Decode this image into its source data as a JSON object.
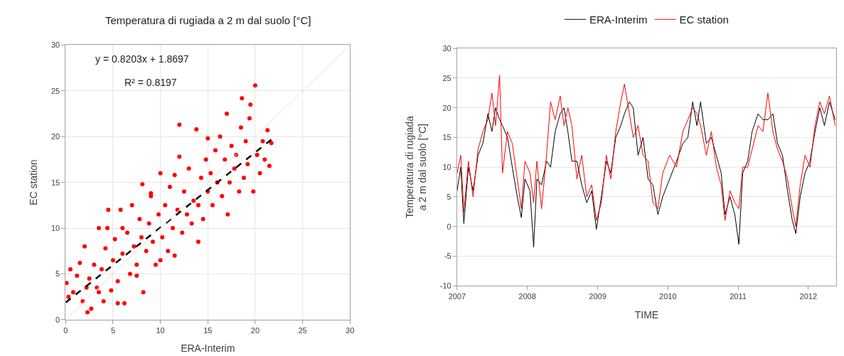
{
  "chart_data": [
    {
      "type": "scatter",
      "title": "Temperatura di rugiada a 2 m dal suolo [°C]",
      "xlabel": "ERA-Interim",
      "ylabel": "EC station",
      "xlim": [
        0,
        30
      ],
      "ylim": [
        0,
        30
      ],
      "xticks": [
        0,
        5,
        10,
        15,
        20,
        25,
        30
      ],
      "yticks": [
        0,
        5,
        10,
        15,
        20,
        25,
        30
      ],
      "grid": true,
      "annotations": [
        "y = 0.8203x + 1.8697",
        "R² = 0.8197"
      ],
      "series": [
        {
          "color": "#ff0000",
          "marker": "circle",
          "x": [
            0.1,
            0.3,
            0.5,
            0.8,
            1.2,
            1.5,
            1.8,
            2.0,
            2.3,
            2.5,
            2.7,
            3.0,
            3.3,
            3.5,
            3.8,
            4.0,
            4.2,
            4.5,
            4.8,
            5.0,
            5.2,
            5.5,
            5.8,
            6.0,
            6.2,
            6.5,
            6.8,
            7.0,
            7.2,
            7.5,
            7.8,
            8.0,
            8.2,
            8.5,
            8.8,
            9.0,
            9.2,
            9.5,
            9.8,
            10.0,
            10.2,
            10.5,
            10.8,
            11.0,
            11.3,
            11.5,
            11.8,
            12.0,
            12.3,
            12.5,
            12.8,
            13.0,
            13.3,
            13.5,
            13.8,
            14.0,
            14.3,
            14.5,
            14.8,
            15.0,
            15.3,
            15.5,
            15.8,
            16.0,
            16.3,
            16.5,
            16.8,
            17.0,
            17.3,
            17.5,
            17.8,
            18.0,
            18.3,
            18.5,
            18.8,
            19.0,
            19.2,
            19.5,
            19.8,
            20.0,
            20.2,
            20.5,
            20.8,
            21.0,
            21.3,
            21.5,
            21.7,
            6.0,
            8.1,
            12.0,
            3.5,
            2.2,
            4.4,
            9.0,
            11.5,
            14.0,
            17.1,
            18.6,
            19.4,
            15.0,
            10.0,
            7.5,
            5.5
          ],
          "values": [
            4.0,
            2.5,
            5.5,
            3.0,
            4.8,
            6.2,
            2.0,
            8.0,
            0.8,
            4.5,
            1.2,
            6.0,
            3.5,
            10.0,
            5.5,
            2.0,
            7.8,
            12.0,
            3.2,
            6.5,
            8.8,
            4.2,
            12.0,
            7.2,
            1.8,
            9.5,
            5.0,
            12.5,
            8.0,
            6.0,
            11.0,
            9.0,
            3.0,
            7.5,
            10.5,
            13.5,
            8.5,
            6.0,
            11.5,
            16.0,
            9.0,
            12.5,
            7.5,
            14.5,
            10.0,
            15.8,
            12.0,
            21.3,
            9.5,
            14.0,
            11.5,
            16.5,
            10.5,
            13.0,
            20.8,
            12.5,
            15.5,
            11.0,
            17.5,
            14.0,
            16.0,
            12.5,
            18.5,
            15.0,
            20.0,
            13.5,
            17.5,
            22.5,
            15.0,
            19.0,
            16.5,
            18.0,
            14.0,
            21.0,
            15.5,
            19.5,
            17.0,
            23.5,
            14.0,
            25.6,
            18.0,
            16.0,
            19.5,
            17.5,
            20.7,
            16.8,
            19.3,
            10.0,
            14.8,
            17.8,
            3.0,
            3.5,
            10.0,
            13.8,
            7.0,
            8.5,
            11.5,
            24.2,
            22.0,
            19.8,
            6.5,
            4.8,
            1.8
          ]
        },
        {
          "type": "line",
          "color": "#000000",
          "line_style": "dashed",
          "x": [
            0,
            21.7
          ],
          "values": [
            1.87,
            19.67
          ]
        },
        {
          "type": "line",
          "color": "#e0e0e0",
          "x": [
            0,
            30
          ],
          "values": [
            0,
            30
          ]
        }
      ]
    },
    {
      "type": "line",
      "xlabel": "TIME",
      "ylabel": "Temperatura di rugiada\na 2 m dal suolo [°C]",
      "xlim": [
        "2007-01-01",
        "2012-05-25"
      ],
      "ylim": [
        -10,
        30
      ],
      "yticks": [
        -10,
        -5,
        0,
        5,
        10,
        15,
        20,
        25,
        30
      ],
      "xticks": [
        {
          "value": "2007-01-01",
          "label": "2007"
        },
        {
          "value": "2008-01-01",
          "label": "2008"
        },
        {
          "value": "2009-01-01",
          "label": "2009"
        },
        {
          "value": "2010-01-01",
          "label": "2010"
        },
        {
          "value": "2011-01-01",
          "label": "2011"
        },
        {
          "value": "2012-01-01",
          "label": "2012"
        }
      ],
      "grid": "y",
      "legend": "top",
      "x": [
        "2007-01-01",
        "2007-01-20",
        "2007-02-05",
        "2007-03-01",
        "2007-03-25",
        "2007-04-20",
        "2007-05-15",
        "2007-06-10",
        "2007-07-01",
        "2007-07-20",
        "2007-08-10",
        "2007-08-25",
        "2007-09-20",
        "2007-10-15",
        "2007-11-10",
        "2007-12-01",
        "2007-12-20",
        "2008-01-15",
        "2008-02-03",
        "2008-02-20",
        "2008-03-15",
        "2008-04-10",
        "2008-05-01",
        "2008-05-25",
        "2008-06-20",
        "2008-07-10",
        "2008-07-30",
        "2008-08-20",
        "2008-09-15",
        "2008-10-10",
        "2008-11-05",
        "2008-12-01",
        "2008-12-25",
        "2009-01-20",
        "2009-02-15",
        "2009-03-10",
        "2009-04-05",
        "2009-05-01",
        "2009-05-20",
        "2009-06-15",
        "2009-07-05",
        "2009-07-30",
        "2009-08-25",
        "2009-09-20",
        "2009-10-15",
        "2009-11-10",
        "2009-12-05",
        "2010-01-10",
        "2010-02-15",
        "2010-03-20",
        "2010-04-15",
        "2010-05-10",
        "2010-06-01",
        "2010-06-20",
        "2010-07-20",
        "2010-08-15",
        "2010-09-10",
        "2010-10-05",
        "2010-10-25",
        "2010-11-20",
        "2010-12-15",
        "2011-01-05",
        "2011-01-25",
        "2011-02-20",
        "2011-03-15",
        "2011-04-15",
        "2011-05-10",
        "2011-06-05",
        "2011-07-01",
        "2011-07-25",
        "2011-08-20",
        "2011-09-15",
        "2011-10-10",
        "2011-10-28",
        "2011-11-20",
        "2011-12-15",
        "2012-01-10",
        "2012-02-05",
        "2012-03-01",
        "2012-03-25",
        "2012-04-20",
        "2012-05-20"
      ],
      "series": [
        {
          "name": "ERA-Interim",
          "color": "#000000",
          "values": [
            6,
            10,
            0.5,
            10,
            6,
            12,
            14,
            19,
            16,
            20,
            18,
            17,
            15,
            10,
            5,
            1.5,
            8,
            6,
            -3.5,
            8,
            7,
            11,
            10,
            16,
            19,
            20,
            16,
            11,
            11,
            7,
            4,
            6,
            -0.5,
            5,
            11,
            9,
            15,
            17,
            19,
            21,
            20,
            12,
            15,
            8,
            7,
            2,
            5,
            8,
            11,
            14,
            15,
            21,
            17,
            21,
            14,
            15,
            12,
            9,
            2,
            5,
            2,
            -3,
            9,
            11,
            16,
            19,
            18,
            18,
            19,
            14,
            12,
            6,
            1,
            -1.2,
            5,
            9,
            11,
            16,
            20,
            17,
            21,
            18
          ]
        },
        {
          "name": "EC station",
          "color": "#ff0000",
          "values": [
            9,
            12,
            2.5,
            11,
            5,
            13,
            16,
            18,
            22.5,
            17,
            25.5,
            9,
            16,
            14,
            8,
            3,
            11,
            9,
            4,
            11,
            3,
            12,
            21,
            18,
            22,
            17,
            20,
            17,
            8,
            12,
            5,
            7,
            1,
            4,
            12,
            8,
            16,
            21,
            24,
            19,
            15,
            17,
            12,
            11,
            4,
            3,
            9,
            12,
            10,
            16,
            18,
            20,
            19,
            17,
            12,
            16,
            10,
            7,
            1,
            6,
            4,
            3,
            10,
            10,
            13,
            17,
            16,
            22.5,
            16,
            13,
            11,
            8,
            3,
            0,
            7,
            12,
            10,
            17,
            21,
            19,
            22,
            17
          ]
        }
      ]
    }
  ]
}
